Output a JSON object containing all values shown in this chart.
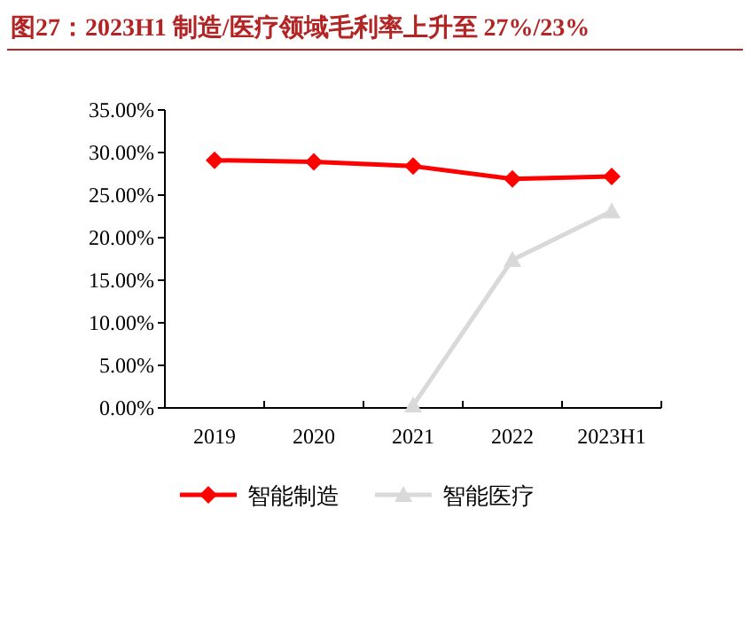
{
  "chart_data": {
    "type": "line",
    "title": "图27：2023H1 制造/医疗领域毛利率上升至 27%/23%",
    "categories": [
      "2019",
      "2020",
      "2021",
      "2022",
      "2023H1"
    ],
    "series": [
      {
        "name": "智能制造",
        "color": "#ff0000",
        "marker": "diamond",
        "values": [
          29.1,
          28.9,
          28.4,
          26.9,
          27.2
        ]
      },
      {
        "name": "智能医疗",
        "color": "#d9d9d9",
        "marker": "triangle",
        "values": [
          null,
          null,
          0.3,
          17.4,
          23.1
        ]
      }
    ],
    "ylim": [
      0,
      35
    ],
    "yticks": [
      {
        "value": 0,
        "label": "0.00%"
      },
      {
        "value": 5,
        "label": "5.00%"
      },
      {
        "value": 10,
        "label": "10.00%"
      },
      {
        "value": 15,
        "label": "15.00%"
      },
      {
        "value": 20,
        "label": "20.00%"
      },
      {
        "value": 25,
        "label": "25.00%"
      },
      {
        "value": 30,
        "label": "30.00%"
      },
      {
        "value": 35,
        "label": "35.00%"
      }
    ],
    "grid": false,
    "legend": "bottom"
  }
}
